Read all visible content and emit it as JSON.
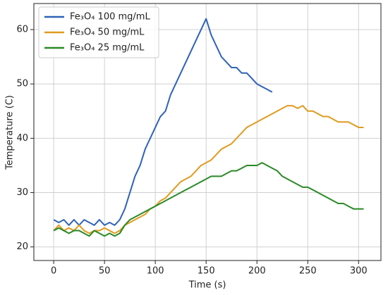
{
  "chart_data": {
    "type": "line",
    "xlabel": "Time (s)",
    "ylabel": "Temperature (C)",
    "xlim": [
      -19.5,
      322
    ],
    "ylim": [
      17.5,
      64.8
    ],
    "xticks": [
      0,
      50,
      100,
      150,
      200,
      250,
      300
    ],
    "yticks": [
      20,
      30,
      40,
      50,
      60
    ],
    "grid": true,
    "legend": "upper left",
    "series": [
      {
        "name": "Fe₃O₄ 100 mg/mL",
        "color": "#2e62b8",
        "x": [
          0,
          5,
          10,
          15,
          20,
          25,
          30,
          35,
          40,
          45,
          50,
          55,
          60,
          65,
          70,
          75,
          80,
          85,
          90,
          95,
          100,
          105,
          110,
          115,
          120,
          125,
          130,
          135,
          140,
          145,
          150,
          155,
          160,
          165,
          170,
          175,
          180,
          185,
          190,
          195,
          200,
          205,
          210,
          215
        ],
        "values": [
          25,
          24.5,
          25,
          24,
          25,
          24,
          25,
          24.5,
          24,
          25,
          24,
          24.5,
          24,
          25,
          27,
          30,
          33,
          35,
          38,
          40,
          42,
          44,
          45,
          48,
          50,
          52,
          54,
          56,
          58,
          60,
          62,
          59,
          57,
          55,
          54,
          53,
          53,
          52,
          52,
          51,
          50,
          49.5,
          49,
          48.5
        ]
      },
      {
        "name": "Fe₃O₄ 50 mg/mL",
        "color": "#e09b20",
        "x": [
          0,
          5,
          10,
          15,
          20,
          25,
          30,
          35,
          40,
          45,
          50,
          55,
          60,
          65,
          70,
          75,
          80,
          85,
          90,
          95,
          100,
          105,
          110,
          115,
          120,
          125,
          130,
          135,
          140,
          145,
          150,
          155,
          160,
          165,
          170,
          175,
          180,
          185,
          190,
          195,
          200,
          205,
          210,
          215,
          220,
          225,
          230,
          235,
          240,
          245,
          250,
          255,
          260,
          265,
          270,
          275,
          280,
          285,
          290,
          295,
          300,
          305
        ],
        "values": [
          23,
          24,
          23,
          23.5,
          23,
          24,
          23,
          22.5,
          23,
          23,
          23.5,
          23,
          22.5,
          23,
          24,
          24.5,
          25,
          25.5,
          26,
          27,
          27.5,
          28.5,
          29,
          30,
          31,
          32,
          32.5,
          33,
          34,
          35,
          35.5,
          36,
          37,
          38,
          38.5,
          39,
          40,
          41,
          42,
          42.5,
          43,
          43.5,
          44,
          44.5,
          45,
          45.5,
          46,
          46,
          45.5,
          46,
          45,
          45,
          44.5,
          44,
          44,
          43.5,
          43,
          43,
          43,
          42.5,
          42,
          42
        ]
      },
      {
        "name": "Fe₃O₄ 25 mg/mL",
        "color": "#2a8a26",
        "x": [
          0,
          5,
          10,
          15,
          20,
          25,
          30,
          35,
          40,
          45,
          50,
          55,
          60,
          65,
          70,
          75,
          80,
          85,
          90,
          95,
          100,
          105,
          110,
          115,
          120,
          125,
          130,
          135,
          140,
          145,
          150,
          155,
          160,
          165,
          170,
          175,
          180,
          185,
          190,
          195,
          200,
          205,
          210,
          215,
          220,
          225,
          230,
          235,
          240,
          245,
          250,
          255,
          260,
          265,
          270,
          275,
          280,
          285,
          290,
          295,
          300,
          305
        ],
        "values": [
          23,
          23.5,
          23,
          22.5,
          23,
          23,
          22.5,
          22,
          23,
          22.5,
          22,
          22.5,
          22,
          22.5,
          24,
          25,
          25.5,
          26,
          26.5,
          27,
          27.5,
          28,
          28.5,
          29,
          29.5,
          30,
          30.5,
          31,
          31.5,
          32,
          32.5,
          33,
          33,
          33,
          33.5,
          34,
          34,
          34.5,
          35,
          35,
          35,
          35.5,
          35,
          34.5,
          34,
          33,
          32.5,
          32,
          31.5,
          31,
          31,
          30.5,
          30,
          29.5,
          29,
          28.5,
          28,
          28,
          27.5,
          27,
          27,
          27
        ]
      }
    ]
  }
}
